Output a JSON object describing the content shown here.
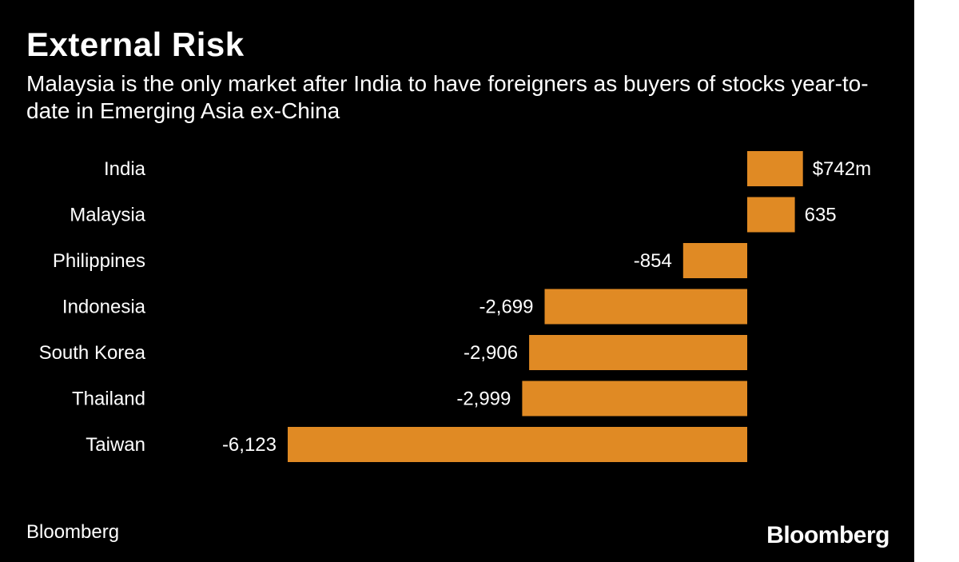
{
  "header": {
    "title": "External Risk",
    "subtitle": "Malaysia is the only market after India to have foreigners as buyers of stocks year-to-date in Emerging Asia ex-China"
  },
  "footer": {
    "source": "Bloomberg",
    "logo_text": "Bloomberg"
  },
  "colors": {
    "background": "#000000",
    "bar": "#e08a24",
    "text": "#ffffff"
  },
  "chart_data": {
    "type": "bar",
    "orientation": "horizontal",
    "categories": [
      "India",
      "Malaysia",
      "Philippines",
      "Indonesia",
      "South Korea",
      "Thailand",
      "Taiwan"
    ],
    "values": [
      742,
      635,
      -854,
      -2699,
      -2906,
      -2999,
      -6123
    ],
    "value_labels": [
      "$742m",
      "635",
      "-854",
      "-2,699",
      "-2,906",
      "-2,999",
      "-6,123"
    ],
    "title": "External Risk",
    "subtitle": "Malaysia is the only market after India to have foreigners as buyers of stocks year-to-date in Emerging Asia ex-China",
    "xlabel": "",
    "ylabel": "",
    "grid": false,
    "legend": "none"
  }
}
